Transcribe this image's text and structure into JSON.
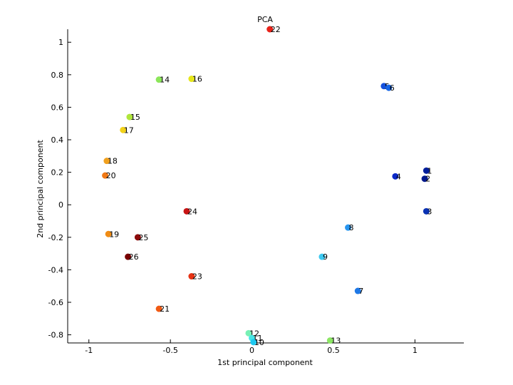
{
  "chart_data": {
    "type": "scatter",
    "title": "PCA",
    "xlabel": "1st principal component",
    "ylabel": "2nd principal component",
    "xlim": [
      -1.13,
      1.3
    ],
    "ylim": [
      -0.85,
      1.08
    ],
    "xticks": [
      -1,
      -0.5,
      0,
      0.5,
      1
    ],
    "yticks": [
      -0.8,
      -0.6,
      -0.4,
      -0.2,
      0,
      0.2,
      0.4,
      0.6,
      0.8,
      1
    ],
    "grid": false,
    "points": [
      {
        "label": "22",
        "x": 0.11,
        "y": 1.08,
        "color": "#e8231a"
      },
      {
        "label": "14",
        "x": -0.57,
        "y": 0.77,
        "color": "#8ce65a"
      },
      {
        "label": "16",
        "x": -0.37,
        "y": 0.775,
        "color": "#e6e61a"
      },
      {
        "label": "15",
        "x": -0.75,
        "y": 0.54,
        "color": "#b0e63c"
      },
      {
        "label": "17",
        "x": -0.79,
        "y": 0.46,
        "color": "#f2d21a"
      },
      {
        "label": "18",
        "x": -0.89,
        "y": 0.27,
        "color": "#f0a01e"
      },
      {
        "label": "20",
        "x": -0.9,
        "y": 0.18,
        "color": "#f07814"
      },
      {
        "label": "24",
        "x": -0.4,
        "y": -0.04,
        "color": "#c81414"
      },
      {
        "label": "19",
        "x": -0.88,
        "y": -0.18,
        "color": "#f08c14"
      },
      {
        "label": "25",
        "x": -0.7,
        "y": -0.2,
        "color": "#8c0a0a"
      },
      {
        "label": "26",
        "x": -0.76,
        "y": -0.32,
        "color": "#780000"
      },
      {
        "label": "23",
        "x": -0.37,
        "y": -0.44,
        "color": "#e63214"
      },
      {
        "label": "21",
        "x": -0.57,
        "y": -0.64,
        "color": "#f05a14"
      },
      {
        "label": "12",
        "x": -0.02,
        "y": -0.79,
        "color": "#78f0b4"
      },
      {
        "label": "11",
        "x": 0.0,
        "y": -0.82,
        "color": "#46e6e6"
      },
      {
        "label": "10",
        "x": 0.01,
        "y": -0.845,
        "color": "#1ec8f0"
      },
      {
        "label": "13",
        "x": 0.48,
        "y": -0.835,
        "color": "#8ce664"
      },
      {
        "label": "5",
        "x": 0.81,
        "y": 0.73,
        "color": "#1450dc"
      },
      {
        "label": "6",
        "x": 0.84,
        "y": 0.72,
        "color": "#1464e6"
      },
      {
        "label": "1",
        "x": 1.07,
        "y": 0.21,
        "color": "#001e9b"
      },
      {
        "label": "4",
        "x": 0.88,
        "y": 0.175,
        "color": "#0a28c8"
      },
      {
        "label": "2",
        "x": 1.06,
        "y": 0.16,
        "color": "#00188c"
      },
      {
        "label": "3",
        "x": 1.07,
        "y": -0.04,
        "color": "#0a32b4"
      },
      {
        "label": "8",
        "x": 0.59,
        "y": -0.14,
        "color": "#2896f0"
      },
      {
        "label": "9",
        "x": 0.43,
        "y": -0.32,
        "color": "#3cc8f0"
      },
      {
        "label": "7",
        "x": 0.65,
        "y": -0.53,
        "color": "#1e78e6"
      }
    ]
  }
}
